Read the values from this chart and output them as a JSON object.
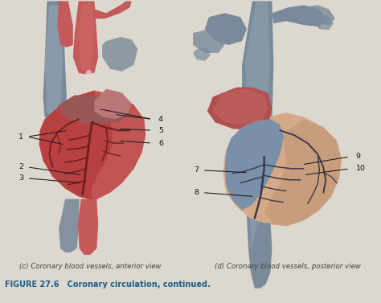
{
  "bg_color": "#ddd8cf",
  "title": "FIGURE 27.6   Coronary circulation, continued.",
  "title_color": "#1a5f8a",
  "title_fontsize": 7.0,
  "caption_left": "(c) Coronary blood vessels, anterior view",
  "caption_right": "(d) Coronary blood vessels, posterior view",
  "caption_fontsize": 6.2,
  "caption_color": "#444444",
  "label_fontsize": 6.8,
  "label_color": "#111111",
  "vessel_blue": "#8aaec5",
  "vessel_red": "#c55a5a",
  "heart_red": "#b84040",
  "heart_pink": "#cc6666",
  "heart_pale": "#c87878",
  "heart_tan": "#c49a7a",
  "heart_tan2": "#d4aa88",
  "dark_grey": "#7a8a9a",
  "mid_grey": "#9aabba",
  "vessel_dark": "#6b1f1f",
  "vessel_dark2": "#3a3a4a"
}
